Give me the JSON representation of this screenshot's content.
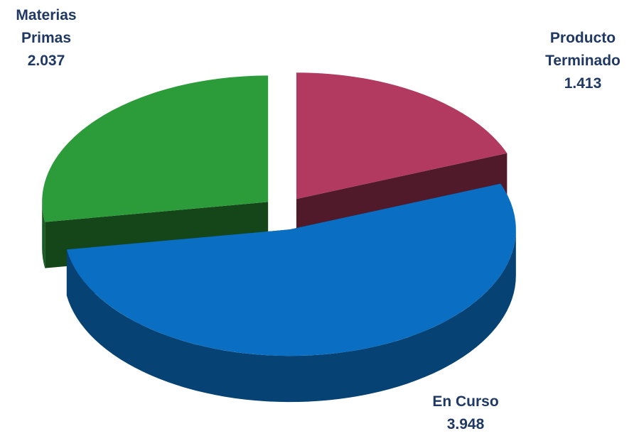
{
  "chart_data": {
    "type": "pie",
    "categories": [
      "Producto Terminado",
      "En Curso",
      "Materias Primas"
    ],
    "values": [
      1.413,
      3.948,
      2.037
    ],
    "colors": [
      "#b23a60",
      "#0a6fc2",
      "#2c9c3a"
    ]
  }
}
